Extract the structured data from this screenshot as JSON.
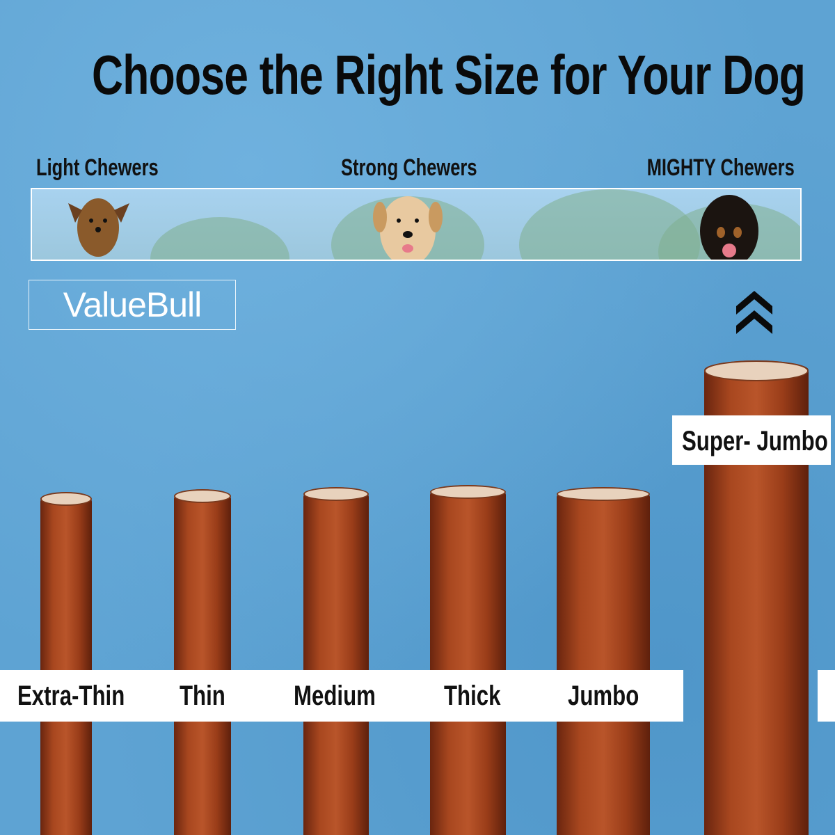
{
  "title": "Choose the Right Size for Your Dog",
  "chewer_levels": [
    "Light Chewers",
    "Strong Chewers",
    "MIGHTY Chewers"
  ],
  "brand": "ValueBull",
  "sizes": [
    "Extra-Thin",
    "Thin",
    "Medium",
    "Thick",
    "Jumbo",
    "Super- Jumbo"
  ],
  "icons": {
    "upgrade": "double-chevron-up-icon"
  },
  "colors": {
    "background": "#5ea3d3",
    "stick": "#a8471f",
    "text": "#111111",
    "label_bg": "#ffffff"
  }
}
